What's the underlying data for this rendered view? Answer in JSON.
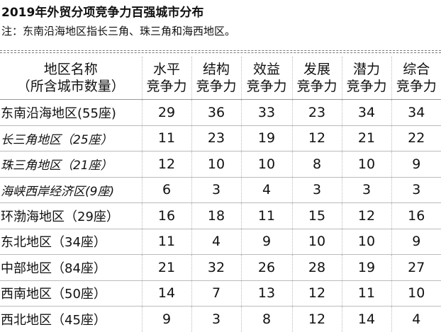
{
  "header": {
    "title": "2019年外贸分项竞争力百强城市分布",
    "note": "注：东南沿海地区指长三角、珠三角和海西地区。"
  },
  "table": {
    "columns": [
      [
        "地区名称",
        "（所含城市数量）"
      ],
      [
        "水平",
        "竞争力"
      ],
      [
        "结构",
        "竞争力"
      ],
      [
        "效益",
        "竞争力"
      ],
      [
        "发展",
        "竞争力"
      ],
      [
        "潜力",
        "竞争力"
      ],
      [
        "综合",
        "竞争力"
      ]
    ],
    "rows": [
      [
        "东南沿海地区(55座)",
        29,
        36,
        33,
        23,
        34,
        34
      ],
      [
        "长三角地区（25座）",
        11,
        23,
        19,
        12,
        21,
        22
      ],
      [
        "珠三角地区（21座）",
        12,
        10,
        10,
        8,
        10,
        9
      ],
      [
        "海峡西岸经济区(9座)",
        6,
        3,
        4,
        3,
        3,
        3
      ],
      [
        "环渤海地区（29座）",
        16,
        18,
        11,
        15,
        12,
        16
      ],
      [
        "东北地区（34座）",
        11,
        4,
        9,
        10,
        10,
        9
      ],
      [
        "中部地区（84座）",
        21,
        32,
        26,
        28,
        19,
        27
      ],
      [
        "西南地区（50座）",
        14,
        7,
        13,
        12,
        11,
        10
      ],
      [
        "西北地区（45座）",
        9,
        3,
        8,
        12,
        14,
        4
      ]
    ]
  }
}
